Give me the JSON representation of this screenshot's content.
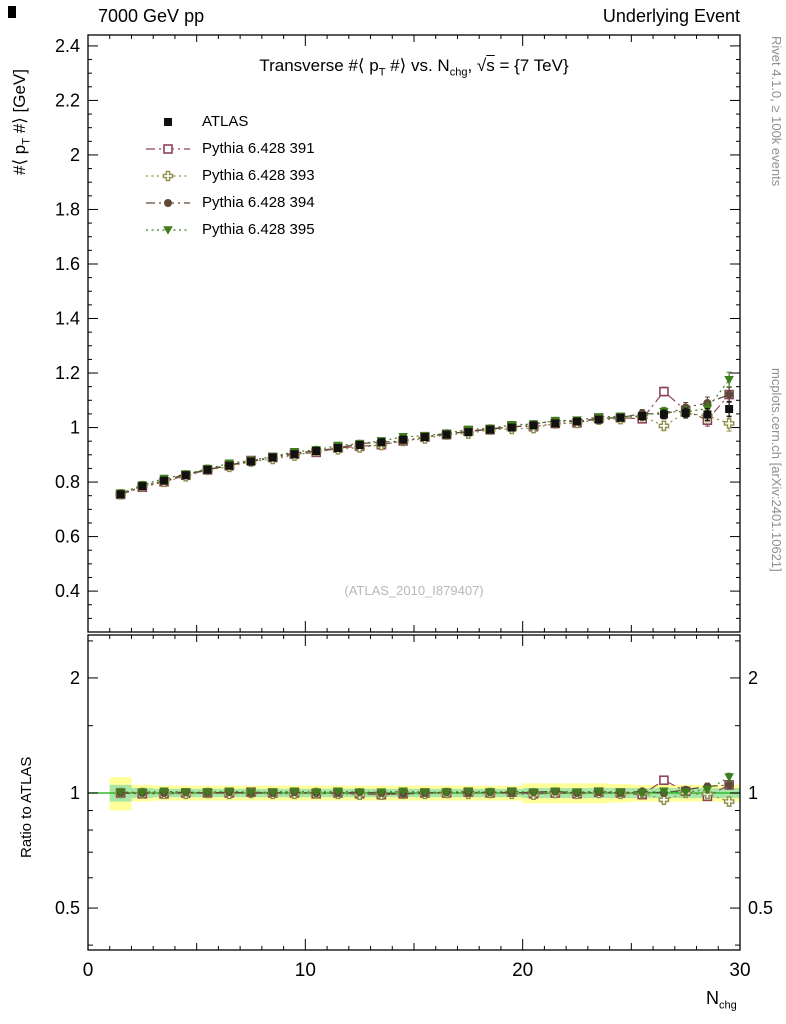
{
  "header": {
    "left": "7000 GeV pp",
    "right": "Underlying Event"
  },
  "title_parts": {
    "pre": "Transverse #⟨ p",
    "sub1": "T",
    "mid": " #⟩ vs. N",
    "sub2": "chg",
    "sqrt_pre": ", √",
    "sqrt_s": "s",
    "post": " = {7 TeV}"
  },
  "axis_labels": {
    "y_top_pre": "#⟨ p",
    "y_top_sub": "T",
    "y_top_post": " #⟩ [GeV]",
    "ratio": "Ratio to ATLAS",
    "x_pre": "N",
    "x_sub": "chg"
  },
  "side_notes": {
    "top_right": "Rivet 4.1.0, ≥ 100k events",
    "bottom_right": "mcplots.cern.ch [arXiv:2401.10621]"
  },
  "watermark": "(ATLAS_2010_I879407)",
  "chart_data": {
    "type": "scatter",
    "title": "Transverse #⟨ p_T #⟩ vs. N_chg, √s = {7 TeV}",
    "xlabel": "N_chg",
    "ylabel_top": "#⟨ p_T #⟩ [GeV]",
    "ylabel_bottom": "Ratio to ATLAS",
    "xlim": [
      0,
      30
    ],
    "ylim_top": [
      0.25,
      2.44
    ],
    "ylim_ratio_log": [
      0.39,
      2.6
    ],
    "x_ticks": {
      "values": [
        0,
        10,
        20,
        30
      ],
      "labels": [
        "0",
        "10",
        "20",
        "30"
      ]
    },
    "y_ticks_top": {
      "values": [
        0.4,
        0.6,
        0.8,
        1.0,
        1.2,
        1.4,
        1.6,
        1.8,
        2.0,
        2.2,
        2.4
      ],
      "labels": [
        "0.4",
        "0.6",
        "0.8",
        "1",
        "1.2",
        "1.4",
        "1.6",
        "1.8",
        "2",
        "2.2",
        "2.4"
      ]
    },
    "ratio_ticks": {
      "values": [
        0.5,
        1,
        2
      ],
      "labels": [
        "0.5",
        "1",
        "2"
      ],
      "minors": [
        0.4,
        0.6,
        0.7,
        0.8,
        0.9,
        1.5,
        2.5
      ]
    },
    "colors": {
      "atlas": "#111111",
      "p391": "#8b4557",
      "p393": "#8f8f4b",
      "p394": "#5f4a3a",
      "p395": "#3f7d1f",
      "band_yellow": "#ffff99",
      "band_green": "#a6e6a6",
      "ratio_line": "#33bb33"
    },
    "x": [
      1.5,
      2.5,
      3.5,
      4.5,
      5.5,
      6.5,
      7.5,
      8.5,
      9.5,
      10.5,
      11.5,
      12.5,
      13.5,
      14.5,
      15.5,
      16.5,
      17.5,
      18.5,
      19.5,
      20.5,
      21.5,
      22.5,
      23.5,
      24.5,
      25.5,
      26.5,
      27.5,
      28.5,
      29.5
    ],
    "err": [
      0.006,
      0.006,
      0.006,
      0.006,
      0.006,
      0.006,
      0.006,
      0.006,
      0.006,
      0.006,
      0.006,
      0.006,
      0.006,
      0.006,
      0.006,
      0.006,
      0.006,
      0.007,
      0.007,
      0.008,
      0.008,
      0.009,
      0.01,
      0.012,
      0.014,
      0.016,
      0.018,
      0.022,
      0.028
    ],
    "series": [
      {
        "name": "ATLAS",
        "marker": "square-filled",
        "color_key": "atlas",
        "line": "none",
        "values": [
          0.755,
          0.785,
          0.805,
          0.825,
          0.845,
          0.86,
          0.875,
          0.89,
          0.902,
          0.914,
          0.925,
          0.936,
          0.946,
          0.956,
          0.965,
          0.974,
          0.983,
          0.992,
          1.0,
          1.008,
          1.015,
          1.022,
          1.029,
          1.036,
          1.042,
          1.048,
          1.053,
          1.048,
          1.068
        ],
        "ratio": null
      },
      {
        "name": "Pythia 6.428 391",
        "marker": "square-open",
        "color_key": "p391",
        "line": "dashdot",
        "values": [
          0.755,
          0.781,
          0.801,
          0.825,
          0.845,
          0.86,
          0.879,
          0.89,
          0.902,
          0.909,
          0.925,
          0.931,
          0.937,
          0.951,
          0.965,
          0.974,
          0.988,
          0.992,
          1.005,
          1.003,
          1.015,
          1.017,
          1.034,
          1.036,
          1.032,
          1.132,
          1.063,
          1.027,
          1.121
        ],
        "ratio": [
          1.0,
          0.995,
          0.995,
          1.0,
          1.0,
          1.0,
          1.005,
          1.0,
          1.0,
          0.995,
          1.0,
          0.995,
          0.99,
          0.995,
          1.0,
          1.0,
          1.005,
          1.0,
          1.005,
          0.995,
          1.0,
          0.995,
          1.005,
          1.0,
          0.99,
          1.08,
          1.01,
          0.98,
          1.05
        ]
      },
      {
        "name": "Pythia 6.428 393",
        "marker": "cross-open",
        "color_key": "p393",
        "line": "dot",
        "values": [
          0.755,
          0.785,
          0.801,
          0.821,
          0.845,
          0.856,
          0.875,
          0.885,
          0.897,
          0.914,
          0.92,
          0.927,
          0.936,
          0.951,
          0.96,
          0.974,
          0.978,
          0.992,
          0.995,
          0.998,
          1.015,
          1.017,
          1.029,
          1.031,
          1.042,
          1.006,
          1.053,
          1.043,
          1.015
        ],
        "ratio": [
          1.0,
          1.0,
          0.995,
          0.995,
          1.0,
          0.995,
          1.0,
          0.995,
          0.995,
          1.0,
          0.995,
          0.99,
          0.99,
          0.995,
          0.995,
          1.0,
          0.995,
          1.0,
          0.995,
          0.99,
          1.0,
          0.995,
          1.0,
          0.995,
          1.0,
          0.96,
          1.0,
          0.995,
          0.95
        ]
      },
      {
        "name": "Pythia 6.428 394",
        "marker": "circle-filled",
        "color_key": "p394",
        "line": "dashdot",
        "values": [
          0.755,
          0.785,
          0.805,
          0.829,
          0.845,
          0.864,
          0.875,
          0.89,
          0.907,
          0.914,
          0.925,
          0.941,
          0.946,
          0.951,
          0.965,
          0.979,
          0.983,
          0.997,
          1.0,
          1.013,
          1.025,
          1.022,
          1.034,
          1.036,
          1.052,
          1.048,
          1.074,
          1.09,
          1.121
        ],
        "ratio": [
          1.0,
          1.0,
          1.0,
          1.005,
          1.0,
          1.005,
          1.0,
          1.0,
          1.005,
          1.0,
          1.0,
          1.005,
          1.0,
          0.995,
          1.0,
          1.005,
          1.0,
          1.005,
          1.0,
          1.005,
          1.01,
          1.0,
          1.005,
          1.0,
          1.01,
          1.0,
          1.02,
          1.04,
          1.05
        ]
      },
      {
        "name": "Pythia 6.428 395",
        "marker": "triangle-down-filled",
        "color_key": "p395",
        "line": "dot",
        "values": [
          0.759,
          0.789,
          0.813,
          0.829,
          0.849,
          0.869,
          0.879,
          0.894,
          0.911,
          0.918,
          0.934,
          0.941,
          0.951,
          0.966,
          0.97,
          0.979,
          0.993,
          0.997,
          1.01,
          1.013,
          1.025,
          1.027,
          1.039,
          1.041,
          1.042,
          1.058,
          1.058,
          1.069,
          1.175
        ],
        "ratio": [
          1.005,
          1.005,
          1.01,
          1.005,
          1.005,
          1.01,
          1.005,
          1.005,
          1.01,
          1.005,
          1.01,
          1.005,
          1.005,
          1.01,
          1.005,
          1.005,
          1.01,
          1.005,
          1.01,
          1.005,
          1.01,
          1.005,
          1.01,
          1.005,
          1.0,
          1.01,
          1.005,
          1.02,
          1.1
        ]
      }
    ],
    "bands": {
      "yellow": [
        0.1,
        0.05,
        0.045,
        0.045,
        0.045,
        0.045,
        0.045,
        0.045,
        0.045,
        0.045,
        0.045,
        0.045,
        0.045,
        0.045,
        0.045,
        0.045,
        0.045,
        0.045,
        0.045,
        0.06,
        0.06,
        0.06,
        0.06,
        0.055,
        0.05,
        0.05,
        0.05,
        0.05,
        0.05
      ],
      "green": [
        0.05,
        0.03,
        0.025,
        0.025,
        0.025,
        0.025,
        0.025,
        0.025,
        0.025,
        0.025,
        0.025,
        0.025,
        0.025,
        0.025,
        0.025,
        0.025,
        0.025,
        0.025,
        0.025,
        0.03,
        0.03,
        0.03,
        0.03,
        0.03,
        0.03,
        0.03,
        0.03,
        0.03,
        0.03
      ]
    }
  }
}
